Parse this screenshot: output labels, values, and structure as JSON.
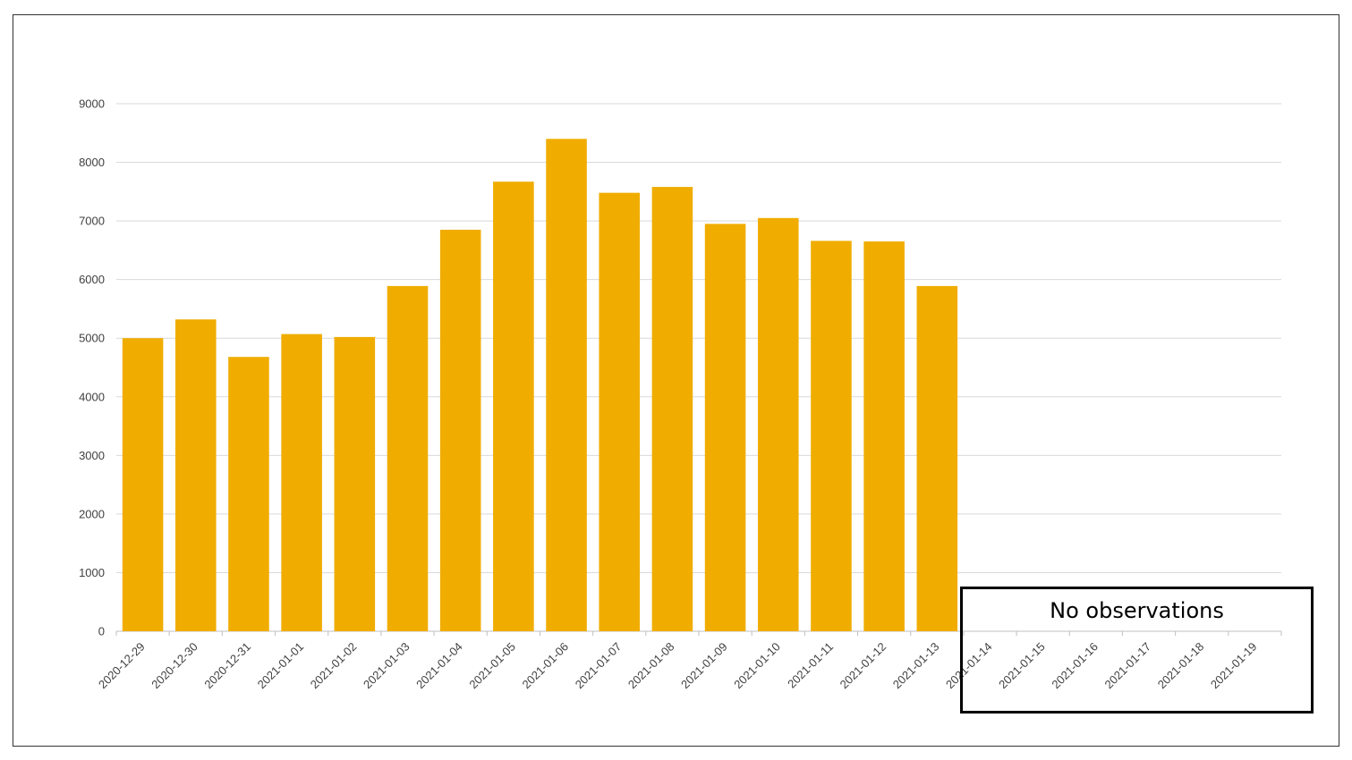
{
  "chart_data": {
    "type": "bar",
    "categories": [
      "2020-12-29",
      "2020-12-30",
      "2020-12-31",
      "2021-01-01",
      "2021-01-02",
      "2021-01-03",
      "2021-01-04",
      "2021-01-05",
      "2021-01-06",
      "2021-01-07",
      "2021-01-08",
      "2021-01-09",
      "2021-01-10",
      "2021-01-11",
      "2021-01-12",
      "2021-01-13",
      "2021-01-14",
      "2021-01-15",
      "2021-01-16",
      "2021-01-17",
      "2021-01-18",
      "2021-01-19"
    ],
    "values": [
      5000,
      5320,
      4680,
      5070,
      5020,
      5890,
      6850,
      7670,
      8400,
      7480,
      7580,
      6950,
      7050,
      6660,
      6650,
      5890,
      null,
      null,
      null,
      null,
      null,
      null
    ],
    "ylim": [
      0,
      9000
    ],
    "yticks": [
      0,
      1000,
      2000,
      3000,
      4000,
      5000,
      6000,
      7000,
      8000,
      9000
    ],
    "grid": true,
    "bar_color": "#F0AD00",
    "gridline_color": "#D9D9D9",
    "annotation": "No observations"
  }
}
